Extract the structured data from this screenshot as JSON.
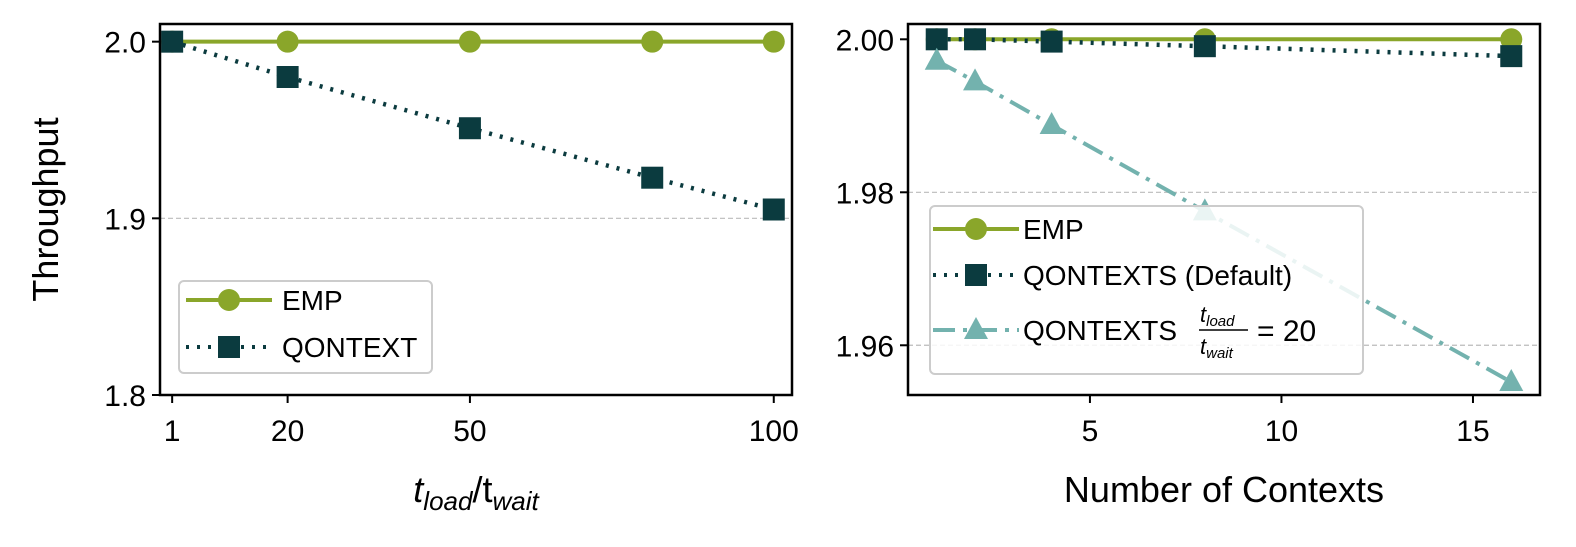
{
  "chart_data": [
    {
      "type": "line",
      "xlabel_base": "t",
      "xlabel_sub1": "load",
      "xlabel_sep": "/t",
      "xlabel_sub2": "wait",
      "ylabel": "Throughput",
      "xlim": [
        -1,
        103
      ],
      "ylim": [
        1.8,
        2.01
      ],
      "xticks": [
        1,
        20,
        50,
        100
      ],
      "xtick_labels": [
        "1",
        "20",
        "50",
        "100"
      ],
      "yticks": [
        1.8,
        1.9,
        2.0
      ],
      "ytick_labels": [
        "1.8",
        "1.9",
        "2.0"
      ],
      "hgrid": [
        1.9
      ],
      "legend": "lower-left",
      "series": [
        {
          "name": "EMP",
          "color": "#8aa62a",
          "marker": "circle",
          "line": "solid",
          "x": [
            1,
            20,
            50,
            80,
            100
          ],
          "values": [
            2.0,
            2.0,
            2.0,
            2.0,
            2.0
          ]
        },
        {
          "name": "QONTEXT",
          "color": "#0b3b3f",
          "marker": "square",
          "line": "dotted",
          "x": [
            1,
            20,
            50,
            80,
            100
          ],
          "values": [
            2.0,
            1.98,
            1.951,
            1.923,
            1.905
          ]
        }
      ]
    },
    {
      "type": "line",
      "xlabel": "Number of Contexts",
      "ylabel": "",
      "xlim": [
        0.25,
        16.75
      ],
      "ylim": [
        1.9535,
        2.002
      ],
      "xticks": [
        5,
        10,
        15
      ],
      "xtick_labels": [
        "5",
        "10",
        "15"
      ],
      "yticks": [
        1.96,
        1.98,
        2.0
      ],
      "ytick_labels": [
        "1.96",
        "1.98",
        "2.00"
      ],
      "hgrid": [
        1.96,
        1.98
      ],
      "legend": "lower-left",
      "legend_formula": {
        "lhs": "t",
        "num_sub": "load",
        "den_sub": "wait",
        "rhs": "= 20"
      },
      "series": [
        {
          "name": "EMP",
          "color": "#8aa62a",
          "marker": "circle",
          "line": "solid",
          "x": [
            1,
            2,
            4,
            8,
            16
          ],
          "values": [
            2.0,
            2.0,
            2.0,
            2.0,
            2.0
          ]
        },
        {
          "name": "QONTEXTS (Default)",
          "color": "#0b3b3f",
          "marker": "square",
          "line": "dotted",
          "x": [
            1,
            2,
            4,
            8,
            16
          ],
          "values": [
            2.0,
            2.0,
            1.9997,
            1.9991,
            1.9978
          ]
        },
        {
          "name": "QONTEXTS",
          "color": "#73b2ae",
          "marker": "triangle",
          "line": "dashdot",
          "x": [
            1,
            2,
            4,
            8,
            16
          ],
          "values": [
            1.9972,
            1.9945,
            1.9888,
            1.9775,
            1.9552
          ]
        }
      ]
    }
  ]
}
